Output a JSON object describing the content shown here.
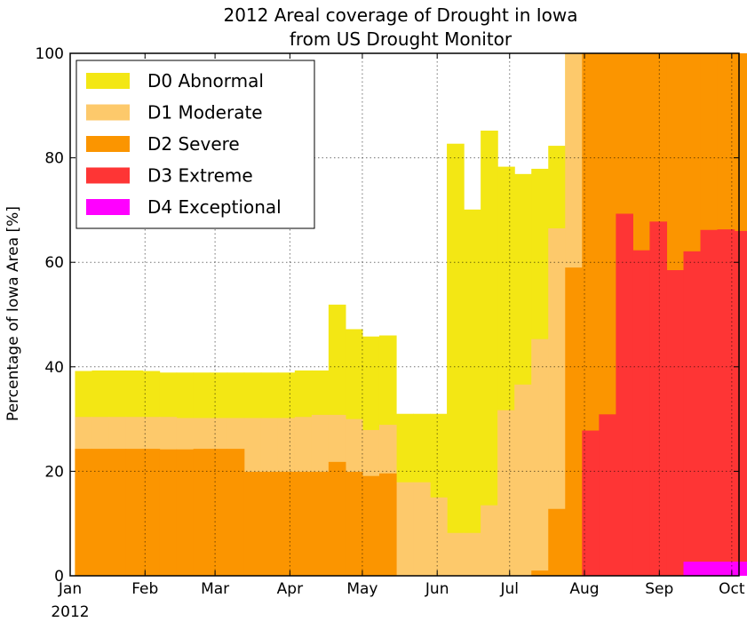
{
  "chart_data": {
    "type": "area",
    "title": "2012 Areal coverage of Drought in Iowa",
    "subtitle": "from US Drought Monitor",
    "xlabel": "",
    "ylabel": "Percentage of Iowa Area [%]",
    "ylim": [
      0,
      100
    ],
    "xlim": [
      "2012-01-01",
      "2012-10-04"
    ],
    "yticks": [
      0,
      20,
      40,
      60,
      80,
      100
    ],
    "xticks": [
      {
        "date": "2012-01-01",
        "label": "Jan"
      },
      {
        "date": "2012-02-01",
        "label": "Feb"
      },
      {
        "date": "2012-03-01",
        "label": "Mar"
      },
      {
        "date": "2012-04-01",
        "label": "Apr"
      },
      {
        "date": "2012-05-01",
        "label": "May"
      },
      {
        "date": "2012-06-01",
        "label": "Jun"
      },
      {
        "date": "2012-07-01",
        "label": "Jul"
      },
      {
        "date": "2012-08-01",
        "label": "Aug"
      },
      {
        "date": "2012-09-01",
        "label": "Sep"
      },
      {
        "date": "2012-10-01",
        "label": "Oct"
      }
    ],
    "year_label": "2012",
    "grid": true,
    "legend_position": "top-left",
    "x": [
      "2012-01-03",
      "2012-01-10",
      "2012-01-17",
      "2012-01-24",
      "2012-01-31",
      "2012-02-07",
      "2012-02-14",
      "2012-02-21",
      "2012-02-28",
      "2012-03-06",
      "2012-03-13",
      "2012-03-20",
      "2012-03-27",
      "2012-04-03",
      "2012-04-10",
      "2012-04-17",
      "2012-04-24",
      "2012-05-01",
      "2012-05-08",
      "2012-05-15",
      "2012-05-22",
      "2012-05-29",
      "2012-06-05",
      "2012-06-12",
      "2012-06-19",
      "2012-06-26",
      "2012-07-03",
      "2012-07-10",
      "2012-07-17",
      "2012-07-24",
      "2012-07-31",
      "2012-08-07",
      "2012-08-14",
      "2012-08-21",
      "2012-08-28",
      "2012-09-04",
      "2012-09-11",
      "2012-09-18",
      "2012-09-25",
      "2012-10-02"
    ],
    "series": [
      {
        "name": "D0 Abnormal",
        "color": "#f3e714",
        "values": [
          39.2,
          39.3,
          39.3,
          39.3,
          39.2,
          38.9,
          38.9,
          38.9,
          38.9,
          38.9,
          38.9,
          38.9,
          38.9,
          39.3,
          39.3,
          51.9,
          47.2,
          45.8,
          46.0,
          31.0,
          31.0,
          31.0,
          82.7,
          70.1,
          85.2,
          78.3,
          76.9,
          77.9,
          82.3,
          100,
          100,
          100,
          100,
          100,
          100,
          100,
          100,
          100,
          100,
          100
        ]
      },
      {
        "name": "D1 Moderate",
        "color": "#fdc96b",
        "values": [
          30.4,
          30.4,
          30.4,
          30.4,
          30.4,
          30.4,
          30.2,
          30.2,
          30.2,
          30.2,
          30.2,
          30.2,
          30.2,
          30.4,
          30.8,
          30.8,
          30.0,
          27.9,
          28.9,
          17.9,
          17.9,
          15.0,
          8.2,
          8.2,
          13.5,
          31.7,
          36.6,
          45.3,
          66.5,
          100,
          100,
          100,
          100,
          100,
          100,
          100,
          100,
          100,
          100,
          100
        ]
      },
      {
        "name": "D2 Severe",
        "color": "#fb9500",
        "values": [
          24.3,
          24.3,
          24.3,
          24.3,
          24.3,
          24.2,
          24.2,
          24.3,
          24.3,
          24.3,
          19.9,
          19.9,
          19.9,
          19.9,
          19.9,
          21.8,
          19.9,
          19.1,
          19.6,
          0,
          0,
          0,
          0,
          0,
          0,
          0,
          0,
          1.0,
          12.8,
          59.0,
          100,
          100,
          100,
          100,
          100,
          100,
          100,
          100,
          100,
          100
        ]
      },
      {
        "name": "D3 Extreme",
        "color": "#fe3535",
        "values": [
          0,
          0,
          0,
          0,
          0,
          0,
          0,
          0,
          0,
          0,
          0,
          0,
          0,
          0,
          0,
          0,
          0,
          0,
          0,
          0,
          0,
          0,
          0,
          0,
          0,
          0,
          0,
          0,
          0,
          0,
          27.8,
          30.9,
          69.3,
          62.3,
          67.8,
          58.5,
          62.1,
          66.2,
          66.3,
          66.0
        ]
      },
      {
        "name": "D4 Exceptional",
        "color": "#ff00ff",
        "values": [
          0,
          0,
          0,
          0,
          0,
          0,
          0,
          0,
          0,
          0,
          0,
          0,
          0,
          0,
          0,
          0,
          0,
          0,
          0,
          0,
          0,
          0,
          0,
          0,
          0,
          0,
          0,
          0,
          0,
          0,
          0,
          0,
          0,
          0,
          0,
          0,
          2.7,
          2.7,
          2.7,
          2.7
        ]
      }
    ]
  }
}
